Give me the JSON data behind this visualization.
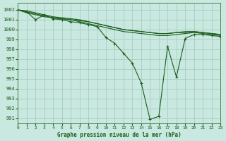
{
  "title": "Graphe pression niveau de la mer (hPa)",
  "bg_color": "#c8e8e0",
  "grid_color": "#a0c8bc",
  "line_color": "#1a5c1a",
  "xlim": [
    0,
    23
  ],
  "ylim": [
    990.5,
    1002.7
  ],
  "yticks": [
    991,
    992,
    993,
    994,
    995,
    996,
    997,
    998,
    999,
    1000,
    1001,
    1002
  ],
  "xticks": [
    0,
    1,
    2,
    3,
    4,
    5,
    6,
    7,
    8,
    9,
    10,
    11,
    12,
    13,
    14,
    15,
    16,
    17,
    18,
    19,
    20,
    21,
    22,
    23
  ],
  "lines_flat": [
    [
      1002.0,
      1001.8,
      1001.6,
      1001.4,
      1001.2,
      1001.1,
      1001.0,
      1000.9,
      1000.8,
      1000.6,
      1000.4,
      1000.2,
      1000.0,
      999.9,
      999.8,
      999.7,
      999.6,
      999.6,
      999.7,
      999.7,
      999.8,
      999.7,
      999.6,
      999.5
    ],
    [
      1002.0,
      1001.9,
      1001.7,
      1001.5,
      1001.3,
      1001.2,
      1001.1,
      1001.0,
      1000.8,
      1000.6,
      1000.4,
      1000.2,
      1000.0,
      999.9,
      999.8,
      999.7,
      999.6,
      999.6,
      999.7,
      999.8,
      999.8,
      999.7,
      999.6,
      999.5
    ],
    [
      1002.0,
      1001.7,
      1001.5,
      1001.3,
      1001.2,
      1001.1,
      1001.0,
      1000.8,
      1000.6,
      1000.4,
      1000.2,
      1000.0,
      999.8,
      999.7,
      999.6,
      999.5,
      999.4,
      999.4,
      999.5,
      999.6,
      999.7,
      999.6,
      999.5,
      999.4
    ]
  ],
  "line_main": [
    1002.0,
    1001.8,
    1001.0,
    1001.5,
    1001.1,
    1001.0,
    1000.8,
    1000.7,
    1000.5,
    1000.3,
    999.2,
    998.6,
    997.6,
    996.6,
    994.6,
    990.9,
    991.2,
    998.3,
    995.2,
    999.1,
    999.5,
    999.5,
    999.4,
    999.3
  ]
}
